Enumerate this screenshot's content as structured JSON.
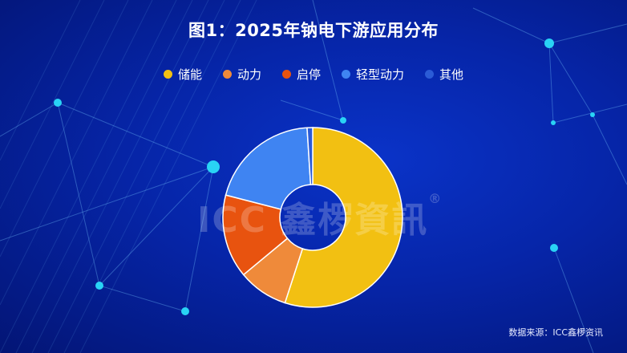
{
  "title": "图1：2025年钠电下游应用分布",
  "source": "数据来源：ICC鑫椤资讯",
  "watermark": {
    "text": "ICC 鑫椤資訊",
    "reg": "®"
  },
  "colors": {
    "储能": "#f2c012",
    "动力": "#ef8a3a",
    "启停": "#e8530f",
    "轻型动力": "#3f84f2",
    "其他": "#2b5bd6"
  },
  "chart_data": {
    "type": "pie",
    "title": "图1：2025年钠电下游应用分布",
    "legend_position": "top",
    "donut": true,
    "categories": [
      "储能",
      "动力",
      "启停",
      "轻型动力",
      "其他"
    ],
    "values": [
      55,
      9,
      15,
      20,
      1
    ]
  }
}
